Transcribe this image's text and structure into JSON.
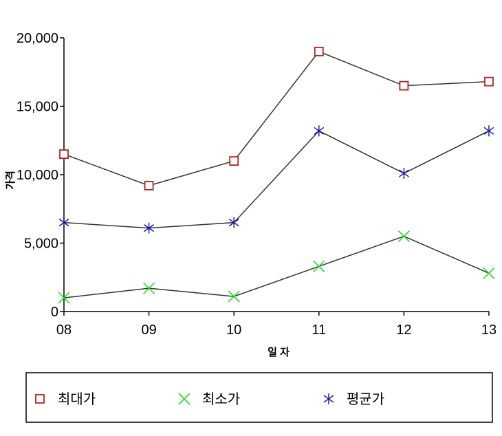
{
  "chart_data": {
    "type": "line",
    "title": "",
    "xlabel": "일 자",
    "ylabel": "가격",
    "categories": [
      "08",
      "09",
      "10",
      "11",
      "12",
      "13"
    ],
    "ylim": [
      0,
      20000
    ],
    "yticks": [
      0,
      5000,
      10000,
      15000,
      20000
    ],
    "ytick_labels": [
      "0",
      "5,000",
      "10,000",
      "15,000",
      "20,000"
    ],
    "grid": false,
    "legend_position": "bottom",
    "series": [
      {
        "name": "최대가",
        "marker": "square",
        "color": "#b22222",
        "values": [
          11500,
          9200,
          11000,
          19000,
          16500,
          16800
        ]
      },
      {
        "name": "최소가",
        "marker": "x",
        "color": "#22dd22",
        "values": [
          1000,
          1700,
          1100,
          3300,
          5500,
          2800
        ]
      },
      {
        "name": "평균가",
        "marker": "asterisk",
        "color": "#1a1aa6",
        "values": [
          6500,
          6100,
          6500,
          13200,
          10100,
          13200
        ]
      }
    ]
  }
}
